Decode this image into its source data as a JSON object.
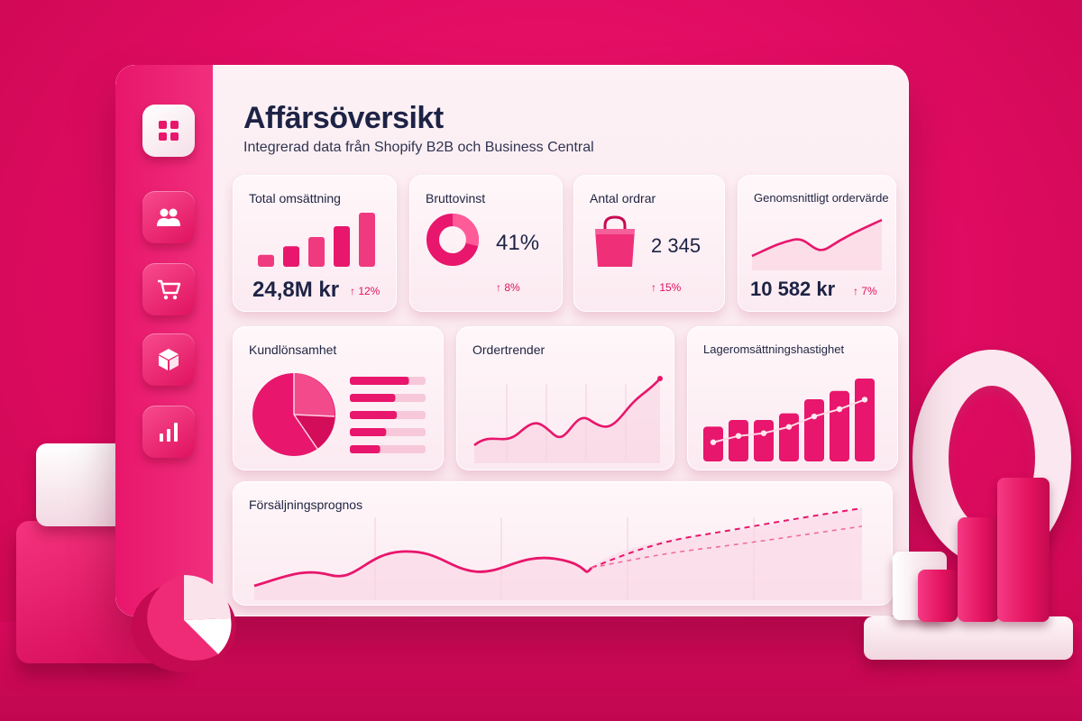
{
  "colors": {
    "background": "#e00b62",
    "accent": "#e8166c",
    "panel": "#fdf1f5",
    "text": "#1d2345"
  },
  "sidebar": {
    "items": [
      {
        "icon": "grid-icon",
        "active": true
      },
      {
        "icon": "users-icon",
        "active": false
      },
      {
        "icon": "cart-icon",
        "active": false
      },
      {
        "icon": "box-icon",
        "active": false
      },
      {
        "icon": "bar-chart-icon",
        "active": false
      }
    ]
  },
  "header": {
    "title": "Affärsöversikt",
    "subtitle": "Integrerad data från Shopify B2B och Business Central"
  },
  "kpis": {
    "total_revenue": {
      "label": "Total omsättning",
      "value": "24,8M kr",
      "delta": "↑ 12%",
      "icon": "bar-chart-icon",
      "bars": [
        0.22,
        0.38,
        0.55,
        0.75,
        1.0
      ]
    },
    "gross_profit": {
      "label": "Bruttovinst",
      "value": "41%",
      "delta": "↑ 8%",
      "icon": "donut-icon"
    },
    "order_count": {
      "label": "Antal ordrar",
      "value": "2 345",
      "delta": "↑ 15%",
      "icon": "shopping-bag-icon"
    },
    "avg_order_value": {
      "label": "Genomsnittligt ordervärde",
      "value": "10 582 kr",
      "delta": "↑ 7%",
      "icon": "line-chart-icon"
    }
  },
  "widgets": {
    "customer_profitability": {
      "label": "Kundlönsamhet",
      "bars": [
        0.78,
        0.6,
        0.62,
        0.48,
        0.4
      ]
    },
    "order_trends": {
      "label": "Ordertrender"
    },
    "inventory_turnover": {
      "label": "Lageromsättningshastighet",
      "bars": [
        0.42,
        0.5,
        0.5,
        0.58,
        0.75,
        0.85,
        1.0
      ]
    },
    "sales_forecast": {
      "label": "Försäljningsprognos"
    }
  }
}
